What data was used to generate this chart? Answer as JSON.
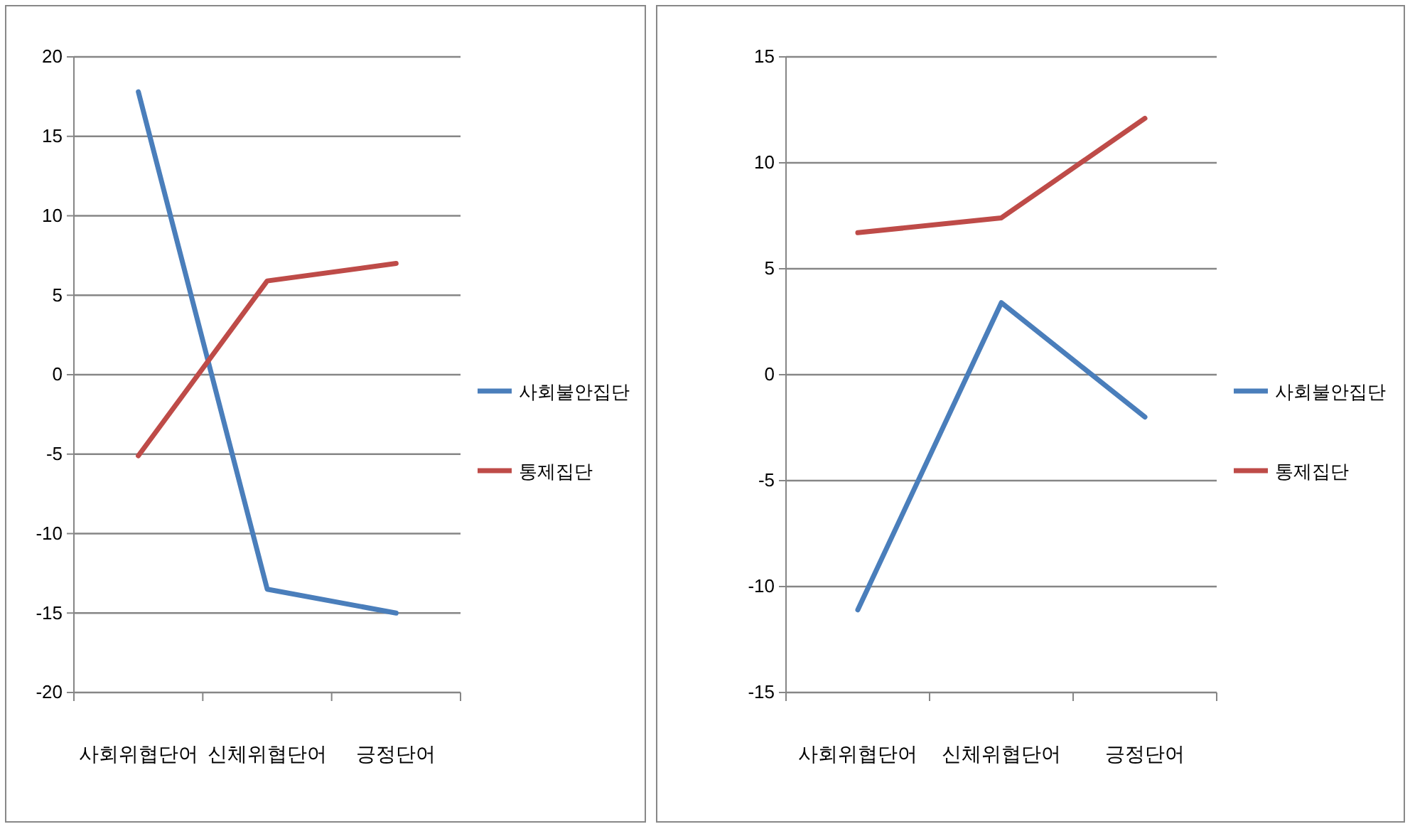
{
  "chart_data": [
    {
      "type": "line",
      "categories": [
        "사회위협단어",
        "신체위협단어",
        "긍정단어"
      ],
      "ylim": [
        -20,
        20
      ],
      "yticks": [
        -20,
        -15,
        -10,
        -5,
        0,
        5,
        10,
        15,
        20
      ],
      "grid": "y",
      "legend": "right",
      "marker": "none",
      "series": [
        {
          "name": "사회불안집단",
          "color": "#4a7ebb",
          "values": [
            17.8,
            -13.5,
            -15.0
          ]
        },
        {
          "name": "통제집단",
          "color": "#be4b48",
          "values": [
            -5.1,
            5.9,
            7.0
          ]
        }
      ]
    },
    {
      "type": "line",
      "categories": [
        "사회위협단어",
        "신체위협단어",
        "긍정단어"
      ],
      "ylim": [
        -15,
        15
      ],
      "yticks": [
        -15,
        -10,
        -5,
        0,
        5,
        10,
        15
      ],
      "grid": "y",
      "legend": "right",
      "marker": "none",
      "series": [
        {
          "name": "사회불안집단",
          "color": "#4a7ebb",
          "values": [
            -11.1,
            3.4,
            -2.0
          ]
        },
        {
          "name": "통제집단",
          "color": "#be4b48",
          "values": [
            6.7,
            7.4,
            12.1
          ]
        }
      ]
    }
  ]
}
